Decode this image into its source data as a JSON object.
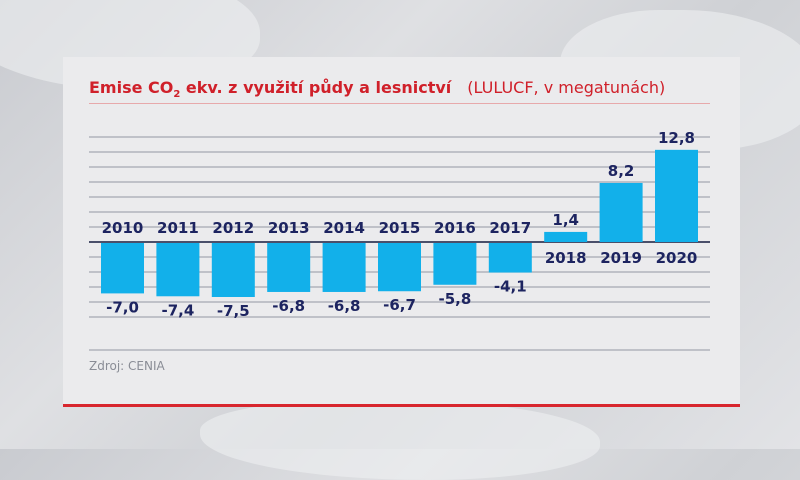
{
  "title": {
    "main_prefix": "Emise CO",
    "main_sub": "2",
    "main_suffix": " ekv. z využití půdy a lesnictví",
    "unit": "(LULUCF, v megatunách)"
  },
  "source": "Zdroj: CENIA",
  "colors": {
    "bar": "#12b0ea",
    "text": "#1d2460",
    "title": "#d0202a",
    "accent_line": "#d8262e"
  },
  "chart_data": {
    "type": "bar",
    "title": "Emise CO2 ekv. z využití půdy a lesnictví (LULUCF, v megatunách)",
    "categories": [
      "2010",
      "2011",
      "2012",
      "2013",
      "2014",
      "2015",
      "2016",
      "2017",
      "2018",
      "2019",
      "2020"
    ],
    "values": [
      -7.0,
      -7.4,
      -7.5,
      -6.8,
      -6.8,
      -6.7,
      -5.8,
      -4.1,
      1.4,
      8.2,
      12.8
    ],
    "labels": [
      "-7,0",
      "-7,4",
      "-7,5",
      "-6,8",
      "-6,8",
      "-6,7",
      "-5,8",
      "-4,1",
      "1,4",
      "8,2",
      "12,8"
    ],
    "xlabel": "",
    "ylabel": "",
    "grid": true,
    "legend": "none"
  }
}
